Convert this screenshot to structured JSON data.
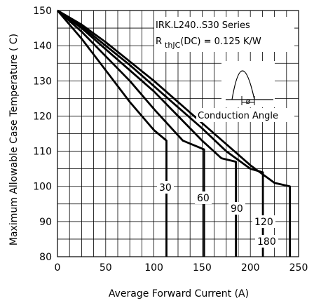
{
  "chart_data": {
    "type": "line",
    "title": "",
    "xlabel": "Average Forward Current (A)",
    "ylabel": "Maximum Allowable Case Temperature ( C)",
    "xlim": [
      0,
      250
    ],
    "ylim": [
      80,
      150
    ],
    "x_ticks": [
      "0",
      "50",
      "100",
      "150",
      "200",
      "250"
    ],
    "y_ticks": [
      "80",
      "90",
      "100",
      "110",
      "120",
      "130",
      "140",
      "150"
    ],
    "grid": true,
    "annotations": {
      "series_name": "IRK.L240..S30 Series",
      "rth_prefix": "R",
      "rth_sub": "thJC",
      "rth_rest": "(DC) = 0.125 K/W",
      "phi": "ø",
      "conduction": "Conduction Angle"
    },
    "series": [
      {
        "label": "30",
        "points": [
          [
            0,
            150
          ],
          [
            25,
            142
          ],
          [
            50,
            133
          ],
          [
            75,
            124
          ],
          [
            100,
            116
          ],
          [
            113,
            113
          ],
          [
            113,
            80
          ]
        ]
      },
      {
        "label": "60",
        "points": [
          [
            0,
            150
          ],
          [
            25,
            144
          ],
          [
            50,
            137
          ],
          [
            75,
            130
          ],
          [
            100,
            122
          ],
          [
            130,
            113
          ],
          [
            152,
            110.5
          ],
          [
            152,
            80
          ]
        ]
      },
      {
        "label": "90",
        "points": [
          [
            0,
            150
          ],
          [
            25,
            145
          ],
          [
            50,
            139
          ],
          [
            75,
            133
          ],
          [
            100,
            127
          ],
          [
            125,
            120
          ],
          [
            150,
            113
          ],
          [
            170,
            108
          ],
          [
            185,
            107
          ],
          [
            185,
            80
          ]
        ]
      },
      {
        "label": "120",
        "points": [
          [
            0,
            150
          ],
          [
            25,
            145.5
          ],
          [
            50,
            140
          ],
          [
            75,
            134.5
          ],
          [
            100,
            128.5
          ],
          [
            125,
            122.5
          ],
          [
            150,
            116.5
          ],
          [
            175,
            110
          ],
          [
            200,
            105
          ],
          [
            213,
            104
          ],
          [
            213,
            80
          ]
        ]
      },
      {
        "label": "180",
        "points": [
          [
            0,
            150
          ],
          [
            25,
            146
          ],
          [
            50,
            141
          ],
          [
            75,
            135.5
          ],
          [
            100,
            130
          ],
          [
            125,
            124
          ],
          [
            150,
            118
          ],
          [
            175,
            112
          ],
          [
            200,
            106
          ],
          [
            225,
            101
          ],
          [
            241,
            100
          ],
          [
            241,
            80
          ]
        ]
      }
    ]
  }
}
